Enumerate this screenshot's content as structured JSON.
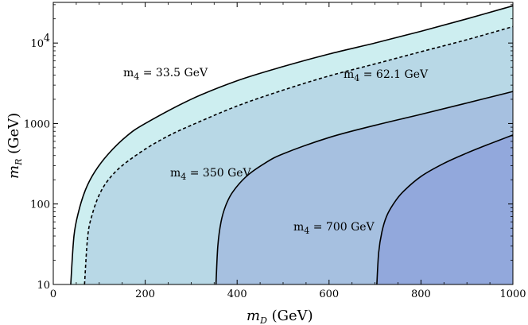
{
  "chart_data": {
    "type": "area",
    "title": "",
    "xlabel": "m",
    "xlabel_sub": "D",
    "xlabel_unit": " (GeV)",
    "ylabel": "m",
    "ylabel_sub": "R",
    "ylabel_unit": " (GeV)",
    "xlim": [
      0,
      1000
    ],
    "ylim": [
      10,
      32000
    ],
    "yscale": "log",
    "grid": false,
    "legend": "none",
    "x_ticks": [
      {
        "value": 0,
        "label": "0"
      },
      {
        "value": 200,
        "label": "200"
      },
      {
        "value": 400,
        "label": "400"
      },
      {
        "value": 600,
        "label": "600"
      },
      {
        "value": 800,
        "label": "800"
      },
      {
        "value": 1000,
        "label": "1000"
      }
    ],
    "y_ticks": [
      {
        "value": 10,
        "label": "10",
        "exp": ""
      },
      {
        "value": 100,
        "label": "100",
        "exp": ""
      },
      {
        "value": 1000,
        "label": "1000",
        "exp": ""
      },
      {
        "value": 10000,
        "label": "10",
        "exp": "4"
      }
    ],
    "series": [
      {
        "m4": 33.5,
        "label": "m",
        "label_sub": "4",
        "label_rest": " = 33.5 GeV",
        "style": "solid",
        "fill": "#cdeef0",
        "x": [
          38,
          45,
          55,
          70,
          90,
          120,
          160,
          200,
          300,
          400,
          500,
          600,
          700,
          800,
          900,
          1000
        ],
        "y": [
          10,
          40,
          80,
          150,
          250,
          420,
          700,
          1000,
          2000,
          3400,
          5100,
          7300,
          10000,
          14000,
          20000,
          29000
        ]
      },
      {
        "m4": 62.1,
        "label": "m",
        "label_sub": "4",
        "label_rest": " = 62.1 GeV",
        "style": "dashed",
        "fill": "#b8d8e6",
        "x": [
          68,
          75,
          85,
          100,
          120,
          150,
          200,
          250,
          300,
          400,
          500,
          600,
          700,
          800,
          900,
          1000
        ],
        "y": [
          10,
          40,
          75,
          130,
          200,
          300,
          480,
          700,
          950,
          1650,
          2600,
          3900,
          5500,
          7800,
          11000,
          16000
        ]
      },
      {
        "m4": 350,
        "label": "m",
        "label_sub": "4",
        "label_rest": " = 350 GeV",
        "style": "solid",
        "fill": "#a6c0e0",
        "x": [
          354,
          358,
          365,
          375,
          390,
          420,
          460,
          500,
          600,
          700,
          800,
          900,
          1000
        ],
        "y": [
          10,
          30,
          60,
          95,
          140,
          220,
          320,
          420,
          670,
          950,
          1300,
          1800,
          2500
        ]
      },
      {
        "m4": 700,
        "label": "m",
        "label_sub": "4",
        "label_rest": " = 700 GeV",
        "style": "solid",
        "fill": "#92a8dc",
        "x": [
          704,
          708,
          715,
          725,
          740,
          760,
          800,
          850,
          900,
          950,
          1000
        ],
        "y": [
          10,
          25,
          45,
          70,
          100,
          140,
          220,
          320,
          430,
          560,
          720
        ]
      }
    ]
  }
}
